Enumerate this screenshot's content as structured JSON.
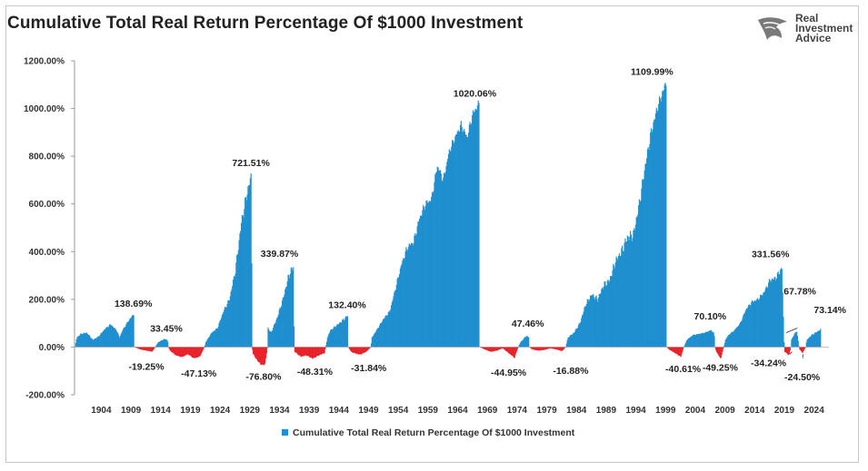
{
  "title": "Cumulative Total Real Return Percentage Of $1000 Investment",
  "logo": {
    "icon": "eagle-head-icon",
    "lines": [
      "Real",
      "Investment",
      "Advice"
    ]
  },
  "colors": {
    "positive": "#1f8fcf",
    "negative": "#e8232a",
    "axis": "#9a9a9a"
  },
  "legend": {
    "label": "Cumulative Total Real Return Percentage Of $1000 Investment"
  },
  "chart_data": {
    "type": "area",
    "title": "Cumulative Total Real Return Percentage Of $1000 Investment",
    "xlabel": "",
    "ylabel": "",
    "xlim": [
      1900,
      2027
    ],
    "ylim": [
      -200,
      1200
    ],
    "yticks": [
      -200,
      0,
      200,
      400,
      600,
      800,
      1000,
      1200
    ],
    "ytick_labels": [
      "-200.00%",
      "0.00%",
      "200.00%",
      "400.00%",
      "600.00%",
      "800.00%",
      "1000.00%",
      "1200.00%"
    ],
    "xticks": [
      1904,
      1909,
      1914,
      1919,
      1924,
      1929,
      1934,
      1939,
      1944,
      1949,
      1954,
      1959,
      1964,
      1969,
      1974,
      1979,
      1984,
      1989,
      1994,
      1999,
      2004,
      2009,
      2014,
      2019,
      2024
    ],
    "legend_position": "bottom",
    "series": [
      {
        "name": "Cumulative Total Real Return Percentage Of $1000 Investment",
        "points": [
          [
            1900.0,
            0
          ],
          [
            1900.3,
            40
          ],
          [
            1901.0,
            55
          ],
          [
            1902.0,
            60
          ],
          [
            1903.0,
            30
          ],
          [
            1904.0,
            45
          ],
          [
            1905.0,
            75
          ],
          [
            1906.0,
            95
          ],
          [
            1907.0,
            70
          ],
          [
            1907.5,
            40
          ],
          [
            1908.0,
            70
          ],
          [
            1909.0,
            110
          ],
          [
            1909.9,
            138.69
          ],
          [
            1910.0,
            0
          ],
          [
            1910.5,
            -5
          ],
          [
            1911.0,
            -10
          ],
          [
            1912.0,
            -15
          ],
          [
            1913.0,
            -19.25
          ],
          [
            1913.5,
            0
          ],
          [
            1914.0,
            20
          ],
          [
            1915.0,
            33.45
          ],
          [
            1915.6,
            30
          ],
          [
            1915.7,
            0
          ],
          [
            1916.0,
            -15
          ],
          [
            1917.0,
            -35
          ],
          [
            1918.0,
            -42
          ],
          [
            1919.0,
            -30
          ],
          [
            1920.0,
            -47.13
          ],
          [
            1921.0,
            -40
          ],
          [
            1921.8,
            0
          ],
          [
            1922.0,
            20
          ],
          [
            1923.0,
            60
          ],
          [
            1924.0,
            80
          ],
          [
            1925.0,
            150
          ],
          [
            1926.0,
            200
          ],
          [
            1927.0,
            320
          ],
          [
            1928.0,
            520
          ],
          [
            1929.0,
            650
          ],
          [
            1929.7,
            721.51
          ],
          [
            1929.8,
            0
          ],
          [
            1930.0,
            -30
          ],
          [
            1930.8,
            -60
          ],
          [
            1931.5,
            -76.8
          ],
          [
            1932.0,
            -70
          ],
          [
            1932.4,
            0
          ],
          [
            1932.5,
            80
          ],
          [
            1933.0,
            60
          ],
          [
            1934.0,
            120
          ],
          [
            1935.0,
            200
          ],
          [
            1936.0,
            300
          ],
          [
            1936.8,
            339.87
          ],
          [
            1936.9,
            0
          ],
          [
            1937.0,
            -20
          ],
          [
            1938.0,
            -40
          ],
          [
            1939.0,
            -35
          ],
          [
            1940.0,
            -48.31
          ],
          [
            1941.0,
            -35
          ],
          [
            1942.0,
            -25
          ],
          [
            1942.2,
            0
          ],
          [
            1942.5,
            40
          ],
          [
            1943.0,
            70
          ],
          [
            1944.0,
            90
          ],
          [
            1945.0,
            110
          ],
          [
            1945.9,
            132.4
          ],
          [
            1946.0,
            0
          ],
          [
            1946.5,
            -20
          ],
          [
            1947.0,
            -25
          ],
          [
            1948.0,
            -31.84
          ],
          [
            1949.0,
            -20
          ],
          [
            1949.8,
            0
          ],
          [
            1950.0,
            40
          ],
          [
            1951.0,
            80
          ],
          [
            1952.0,
            120
          ],
          [
            1953.0,
            150
          ],
          [
            1954.0,
            250
          ],
          [
            1955.0,
            350
          ],
          [
            1956.0,
            420
          ],
          [
            1957.0,
            440
          ],
          [
            1958.0,
            540
          ],
          [
            1959.0,
            600
          ],
          [
            1960.0,
            620
          ],
          [
            1961.0,
            760
          ],
          [
            1962.0,
            700
          ],
          [
            1963.0,
            820
          ],
          [
            1964.0,
            880
          ],
          [
            1965.0,
            930
          ],
          [
            1966.0,
            880
          ],
          [
            1967.0,
            980
          ],
          [
            1968.0,
            1020.06
          ],
          [
            1968.1,
            0
          ],
          [
            1969.0,
            -10
          ],
          [
            1970.0,
            -20
          ],
          [
            1971.0,
            -15
          ],
          [
            1972.0,
            -5
          ],
          [
            1973.0,
            -25
          ],
          [
            1974.0,
            -44.95
          ],
          [
            1974.6,
            0
          ],
          [
            1975.0,
            20
          ],
          [
            1976.0,
            47.46
          ],
          [
            1976.4,
            40
          ],
          [
            1976.5,
            0
          ],
          [
            1977.0,
            -10
          ],
          [
            1978.0,
            -15
          ],
          [
            1979.0,
            -12
          ],
          [
            1980.0,
            -5
          ],
          [
            1981.0,
            -10
          ],
          [
            1982.0,
            -16.88
          ],
          [
            1982.6,
            0
          ],
          [
            1983.0,
            40
          ],
          [
            1984.0,
            60
          ],
          [
            1985.0,
            100
          ],
          [
            1986.0,
            180
          ],
          [
            1987.0,
            220
          ],
          [
            1988.0,
            200
          ],
          [
            1989.0,
            260
          ],
          [
            1990.0,
            280
          ],
          [
            1991.0,
            360
          ],
          [
            1992.0,
            400
          ],
          [
            1993.0,
            460
          ],
          [
            1994.0,
            470
          ],
          [
            1995.0,
            600
          ],
          [
            1996.0,
            760
          ],
          [
            1997.0,
            900
          ],
          [
            1998.0,
            1000
          ],
          [
            1999.5,
            1109.99
          ],
          [
            1999.6,
            0
          ],
          [
            2000.0,
            -10
          ],
          [
            2001.0,
            -25
          ],
          [
            2002.0,
            -40.61
          ],
          [
            2002.5,
            0
          ],
          [
            2003.0,
            30
          ],
          [
            2004.0,
            50
          ],
          [
            2005.0,
            55
          ],
          [
            2006.0,
            60
          ],
          [
            2007.0,
            70.1
          ],
          [
            2007.6,
            60
          ],
          [
            2007.7,
            0
          ],
          [
            2008.0,
            -20
          ],
          [
            2008.7,
            -49.25
          ],
          [
            2009.2,
            0
          ],
          [
            2009.5,
            30
          ],
          [
            2010.0,
            50
          ],
          [
            2011.0,
            70
          ],
          [
            2012.0,
            100
          ],
          [
            2013.0,
            160
          ],
          [
            2014.0,
            190
          ],
          [
            2015.0,
            200
          ],
          [
            2016.0,
            230
          ],
          [
            2017.0,
            280
          ],
          [
            2018.0,
            290
          ],
          [
            2019.0,
            331.56
          ],
          [
            2019.4,
            0
          ],
          [
            2019.5,
            -20
          ],
          [
            2020.2,
            -34.24
          ],
          [
            2020.5,
            0
          ],
          [
            2020.6,
            30
          ],
          [
            2021.0,
            50
          ],
          [
            2021.5,
            67.78
          ],
          [
            2021.9,
            0
          ],
          [
            2022.0,
            -10
          ],
          [
            2022.5,
            -24.5
          ],
          [
            2023.0,
            0
          ],
          [
            2023.2,
            30
          ],
          [
            2024.0,
            50
          ],
          [
            2025.5,
            73.14
          ],
          [
            2025.6,
            0
          ]
        ]
      }
    ],
    "annotations": [
      {
        "x": 1909.9,
        "y": 138.69,
        "text": "138.69%"
      },
      {
        "x": 1913.0,
        "y": -19.25,
        "text": "-19.25%"
      },
      {
        "x": 1915.0,
        "y": 33.45,
        "text": "33.45%"
      },
      {
        "x": 1920.0,
        "y": -47.13,
        "text": "-47.13%"
      },
      {
        "x": 1929.7,
        "y": 721.51,
        "text": "721.51%"
      },
      {
        "x": 1931.5,
        "y": -76.8,
        "text": "-76.80%"
      },
      {
        "x": 1936.8,
        "y": 339.87,
        "text": "339.87%"
      },
      {
        "x": 1940.0,
        "y": -48.31,
        "text": "-48.31%"
      },
      {
        "x": 1945.9,
        "y": 132.4,
        "text": "132.40%"
      },
      {
        "x": 1948.0,
        "y": -31.84,
        "text": "-31.84%"
      },
      {
        "x": 1968.0,
        "y": 1020.06,
        "text": "1020.06%"
      },
      {
        "x": 1974.0,
        "y": -44.95,
        "text": "-44.95%"
      },
      {
        "x": 1976.0,
        "y": 47.46,
        "text": "47.46%"
      },
      {
        "x": 1982.0,
        "y": -16.88,
        "text": "-16.88%"
      },
      {
        "x": 1999.5,
        "y": 1109.99,
        "text": "1109.99%"
      },
      {
        "x": 2002.0,
        "y": -40.61,
        "text": "-40.61%"
      },
      {
        "x": 2007.0,
        "y": 70.1,
        "text": "70.10%"
      },
      {
        "x": 2008.7,
        "y": -49.25,
        "text": "-49.25%"
      },
      {
        "x": 2019.0,
        "y": 331.56,
        "text": "331.56%"
      },
      {
        "x": 2020.2,
        "y": -34.24,
        "text": "-34.24%"
      },
      {
        "x": 2021.5,
        "y": 67.78,
        "text": "67.78%"
      },
      {
        "x": 2022.5,
        "y": -24.5,
        "text": "-24.50%"
      },
      {
        "x": 2025.5,
        "y": 73.14,
        "text": "73.14%"
      }
    ]
  }
}
